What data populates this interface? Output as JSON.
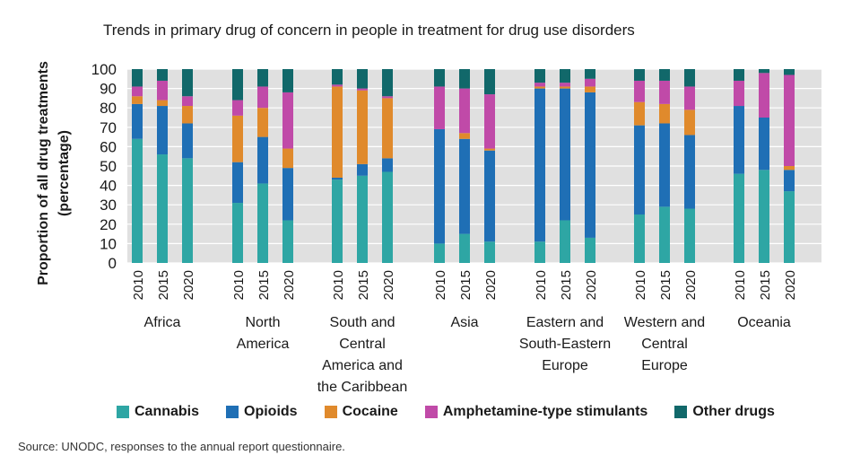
{
  "chart_data": {
    "type": "stacked-bar",
    "title": "Trends in primary drug of concern in people in treatment for drug use disorders",
    "ylabel": "Proportion of all drug treatments (percentage)",
    "ylim": [
      0,
      100
    ],
    "yticks": [
      0,
      10,
      20,
      30,
      40,
      50,
      60,
      70,
      80,
      90,
      100
    ],
    "grid": "horizontal",
    "legend_position": "bottom",
    "series_names": [
      "Cannabis",
      "Opioids",
      "Cocaine",
      "Amphetamine-type stimulants",
      "Other drugs"
    ],
    "colors": [
      "#2ea6a4",
      "#1f6fb5",
      "#e08a2c",
      "#c04aa8",
      "#11686a"
    ],
    "groups": [
      {
        "label": "Africa",
        "bars": [
          {
            "x": "2010",
            "values": [
              64,
              18,
              4,
              5,
              9
            ]
          },
          {
            "x": "2015",
            "values": [
              56,
              25,
              3,
              10,
              6
            ]
          },
          {
            "x": "2020",
            "values": [
              54,
              18,
              9,
              5,
              14
            ]
          }
        ]
      },
      {
        "label": "North America",
        "bars": [
          {
            "x": "2010",
            "values": [
              31,
              21,
              24,
              8,
              16
            ]
          },
          {
            "x": "2015",
            "values": [
              41,
              24,
              15,
              11,
              9
            ]
          },
          {
            "x": "2020",
            "values": [
              22,
              27,
              10,
              29,
              12
            ]
          }
        ]
      },
      {
        "label": "South and Central America and the Caribbean",
        "bars": [
          {
            "x": "2010",
            "values": [
              43,
              1,
              47,
              1,
              8
            ]
          },
          {
            "x": "2015",
            "values": [
              45,
              6,
              38,
              1,
              10
            ]
          },
          {
            "x": "2020",
            "values": [
              47,
              7,
              31,
              1,
              14
            ]
          }
        ]
      },
      {
        "label": "Asia",
        "bars": [
          {
            "x": "2010",
            "values": [
              10,
              59,
              0,
              22,
              9
            ]
          },
          {
            "x": "2015",
            "values": [
              15,
              49,
              3,
              23,
              10
            ]
          },
          {
            "x": "2020",
            "values": [
              11,
              47,
              1,
              28,
              13
            ]
          }
        ]
      },
      {
        "label": "Eastern and South-Eastern Europe",
        "bars": [
          {
            "x": "2010",
            "values": [
              11,
              79,
              1,
              2,
              7
            ]
          },
          {
            "x": "2015",
            "values": [
              22,
              68,
              1,
              2,
              7
            ]
          },
          {
            "x": "2020",
            "values": [
              13,
              75,
              3,
              4,
              5
            ]
          }
        ]
      },
      {
        "label": "Western and Central Europe",
        "bars": [
          {
            "x": "2010",
            "values": [
              25,
              46,
              12,
              11,
              6
            ]
          },
          {
            "x": "2015",
            "values": [
              29,
              43,
              10,
              12,
              6
            ]
          },
          {
            "x": "2020",
            "values": [
              28,
              38,
              13,
              12,
              9
            ]
          }
        ]
      },
      {
        "label": "Oceania",
        "bars": [
          {
            "x": "2010",
            "values": [
              46,
              35,
              0,
              13,
              6
            ]
          },
          {
            "x": "2015",
            "values": [
              48,
              27,
              0,
              23,
              2
            ]
          },
          {
            "x": "2020",
            "values": [
              37,
              11,
              2,
              47,
              3
            ]
          }
        ]
      }
    ],
    "group_label_lines": [
      [
        "Africa"
      ],
      [
        "North",
        "America"
      ],
      [
        "South and",
        "Central",
        "America and",
        "the Caribbean"
      ],
      [
        "Asia"
      ],
      [
        "Eastern and",
        "South-Eastern",
        "Europe"
      ],
      [
        "Western and",
        "Central",
        "Europe"
      ],
      [
        "Oceania"
      ]
    ],
    "ylabel_lines": [
      "Proportion of all drug treatments",
      "(percentage)"
    ]
  },
  "source": "Source: UNODC, responses to the annual report questionnaire."
}
